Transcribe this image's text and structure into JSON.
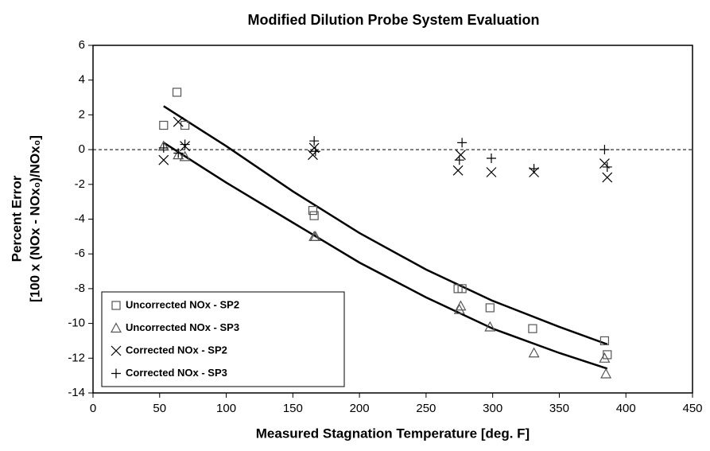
{
  "chart_data": {
    "type": "scatter",
    "title": "Modified Dilution Probe System Evaluation",
    "x_label": "Measured Stagnation Temperature [deg. F]",
    "y_label": [
      "Percent Error",
      "[100 x (NOx - NOx₀)/NOx₀]"
    ],
    "xlim": [
      0,
      450
    ],
    "xticks": [
      0,
      50,
      100,
      150,
      200,
      250,
      300,
      350,
      400,
      450
    ],
    "ylim": [
      -14,
      6
    ],
    "yticks": [
      -14,
      -12,
      -10,
      -8,
      -6,
      -4,
      -2,
      0,
      2,
      4,
      6
    ],
    "reference_line": 0,
    "legend": "lower left",
    "series": [
      {
        "name": "Uncorrected NOx - SP2",
        "marker": "square",
        "color": "#555555",
        "x": [
          53,
          63,
          69,
          165,
          166,
          274,
          277,
          298,
          330,
          384,
          386
        ],
        "values": [
          1.4,
          3.3,
          1.4,
          -3.5,
          -3.8,
          -8.0,
          -8.0,
          -9.1,
          -10.3,
          -11.0,
          -11.8
        ]
      },
      {
        "name": "Uncorrected NOx - SP3",
        "marker": "triangle",
        "color": "#555555",
        "x": [
          53,
          64,
          69,
          166,
          167,
          275,
          276,
          298,
          331,
          384,
          385
        ],
        "values": [
          0.2,
          -0.3,
          -0.4,
          -5.0,
          -5.0,
          -9.2,
          -9.0,
          -10.2,
          -11.7,
          -12.0,
          -12.9
        ]
      },
      {
        "name": "Corrected NOx - SP2",
        "marker": "x",
        "color": "#000000",
        "x": [
          53,
          64,
          69,
          165,
          166,
          274,
          276,
          299,
          331,
          384,
          386
        ],
        "values": [
          -0.6,
          1.6,
          0.2,
          -0.3,
          0.1,
          -1.2,
          -0.3,
          -1.3,
          -1.3,
          -0.8,
          -1.6
        ]
      },
      {
        "name": "Corrected NOx - SP3",
        "marker": "plus",
        "color": "#000000",
        "x": [
          53,
          64,
          69,
          166,
          167,
          275,
          277,
          299,
          331,
          384,
          386
        ],
        "values": [
          0.1,
          -0.2,
          0.3,
          0.5,
          -0.1,
          -0.6,
          0.4,
          -0.5,
          -1.1,
          0.0,
          -1.0
        ]
      }
    ],
    "trendlines": [
      {
        "color": "#000000",
        "x": [
          53,
          100,
          150,
          200,
          250,
          300,
          350,
          386
        ],
        "values": [
          2.5,
          0.2,
          -2.4,
          -4.8,
          -6.9,
          -8.7,
          -10.2,
          -11.2
        ]
      },
      {
        "color": "#000000",
        "x": [
          53,
          100,
          150,
          200,
          250,
          300,
          350,
          386
        ],
        "values": [
          0.4,
          -1.9,
          -4.2,
          -6.5,
          -8.5,
          -10.3,
          -11.7,
          -12.6
        ]
      }
    ]
  }
}
